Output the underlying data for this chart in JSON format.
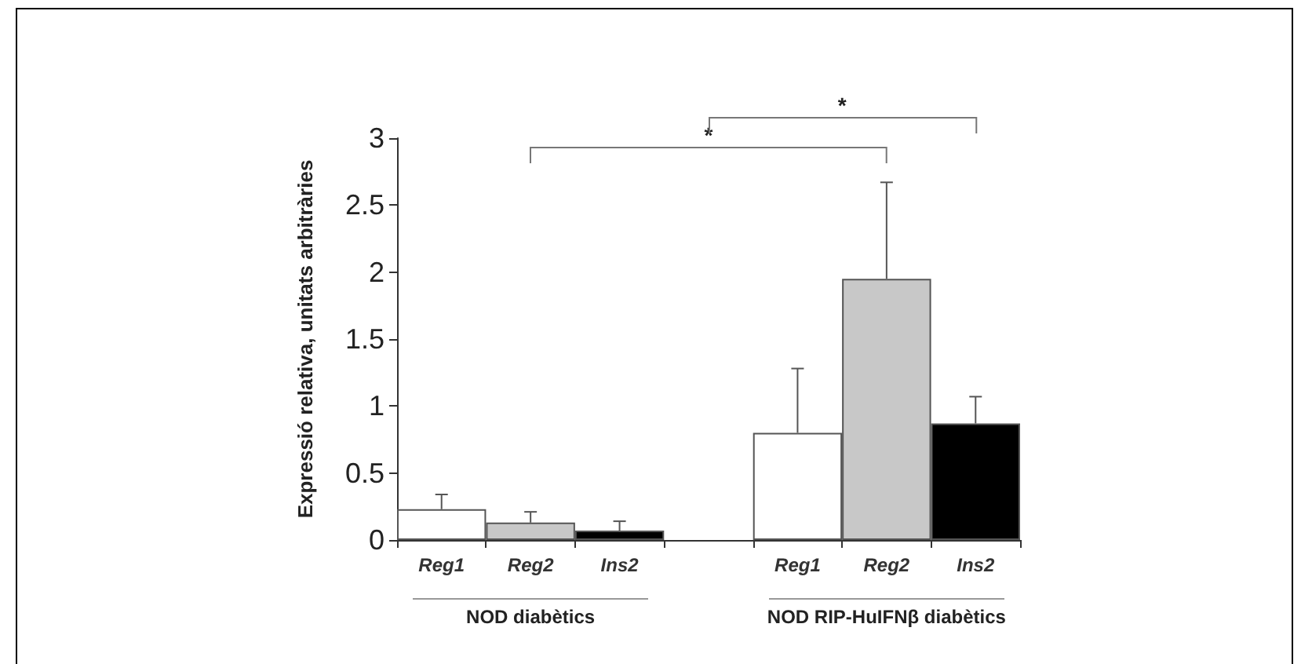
{
  "chart_data": {
    "type": "bar",
    "ylabel": "Expressió relativa, unitats arbitràries",
    "categories": [
      "Reg1",
      "Reg2",
      "Ins2",
      null,
      "Reg1",
      "Reg2",
      "Ins2"
    ],
    "values": [
      0.23,
      0.13,
      0.07,
      null,
      0.8,
      1.95,
      0.87
    ],
    "colors": [
      "#ffffff",
      "#c8c8c8",
      "#000000",
      null,
      "#ffffff",
      "#c8c8c8",
      "#000000"
    ],
    "errors": [
      [
        0.23,
        0.34
      ],
      [
        0.13,
        0.21
      ],
      [
        0.07,
        0.14
      ],
      null,
      [
        0.8,
        1.28
      ],
      [
        1.95,
        2.67
      ],
      [
        0.87,
        1.07
      ]
    ],
    "ylim": [
      0,
      3
    ],
    "yticks": [
      0,
      0.5,
      1,
      1.5,
      2,
      2.5,
      3
    ],
    "grid": false,
    "annotations": [
      "NOD diabètics",
      "NOD RIP-HuIFNβ diabètics",
      "*",
      "*"
    ]
  }
}
